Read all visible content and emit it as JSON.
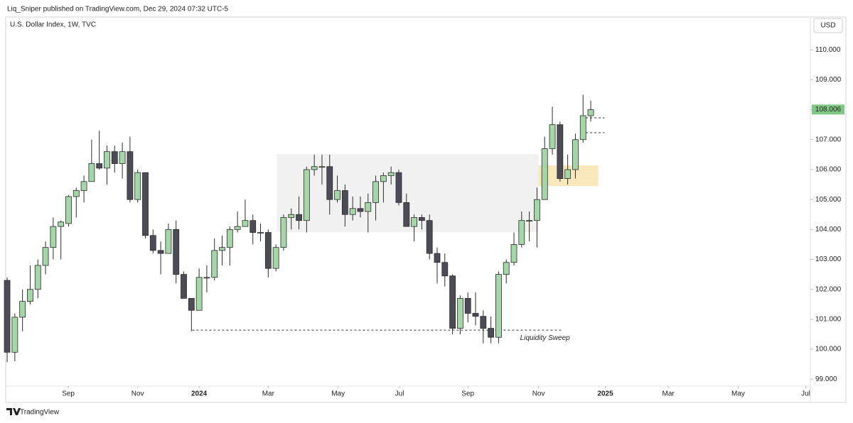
{
  "header": {
    "text": "Liq_Sniper published on TradingView.com, Dec 29, 2024 07:32 UTC-5"
  },
  "footer": {
    "brand": "TradingView"
  },
  "chart_data": {
    "type": "candlestick",
    "title": "U.S. Dollar Index, 1W, TVC",
    "currency": "USD",
    "up_color": "#a5d6a7",
    "down_color": "#4c4c57",
    "outline": "#2b2b2b",
    "grid": false,
    "open": [
      102.3,
      99.9,
      101.07,
      101.6,
      102.0,
      102.8,
      103.4,
      104.1,
      104.2,
      105.1,
      105.3,
      105.6,
      106.2,
      106.05,
      106.6,
      106.2,
      106.6,
      105.0,
      105.9,
      103.8,
      103.3,
      103.2,
      104.0,
      102.5,
      101.7,
      101.3,
      102.4,
      102.4,
      103.3,
      103.4,
      104.0,
      104.1,
      104.3,
      103.9,
      103.9,
      102.7,
      103.4,
      104.4,
      104.5,
      104.3,
      106.0,
      106.1,
      106.1,
      105.0,
      105.3,
      104.5,
      104.7,
      104.6,
      104.9,
      105.6,
      105.8,
      105.9,
      104.9,
      104.1,
      104.4,
      104.3,
      103.2,
      102.9,
      102.45,
      100.7,
      101.7,
      101.2,
      101.1,
      100.7,
      100.4,
      102.5,
      102.9,
      103.5,
      104.3,
      104.3,
      105.0,
      106.7,
      107.5,
      105.7,
      106.0,
      107.0,
      107.8
    ],
    "high": [
      102.4,
      101.2,
      102.0,
      102.8,
      103.0,
      103.6,
      104.4,
      104.3,
      105.15,
      105.4,
      105.8,
      107.0,
      107.3,
      106.8,
      106.8,
      106.9,
      107.1,
      106.0,
      105.9,
      104.0,
      103.6,
      104.2,
      104.3,
      102.6,
      101.7,
      102.7,
      102.8,
      103.7,
      103.8,
      104.1,
      104.6,
      105.0,
      104.5,
      104.2,
      104.0,
      103.5,
      104.5,
      104.7,
      105.1,
      106.1,
      106.5,
      106.5,
      106.5,
      105.8,
      105.5,
      105.1,
      105.1,
      105.2,
      105.8,
      105.9,
      106.1,
      106.0,
      105.2,
      104.5,
      104.5,
      104.5,
      103.4,
      103.2,
      102.5,
      101.8,
      101.9,
      101.9,
      101.3,
      101.1,
      102.6,
      103.0,
      103.9,
      104.6,
      104.6,
      105.4,
      107.1,
      108.1,
      107.6,
      106.5,
      107.2,
      108.5,
      108.3
    ],
    "low": [
      99.57,
      99.6,
      100.6,
      101.5,
      101.7,
      102.5,
      103.0,
      103.0,
      104.1,
      104.4,
      104.9,
      105.6,
      106.0,
      105.5,
      105.9,
      105.7,
      104.9,
      104.9,
      103.7,
      103.2,
      102.5,
      103.2,
      102.2,
      101.7,
      100.6,
      101.3,
      101.9,
      102.3,
      102.8,
      102.8,
      103.9,
      104.1,
      103.5,
      103.6,
      102.4,
      102.6,
      103.3,
      104.0,
      104.0,
      103.9,
      105.8,
      105.5,
      104.5,
      104.9,
      104.1,
      104.3,
      104.4,
      103.9,
      104.3,
      104.9,
      105.5,
      104.8,
      104.1,
      103.6,
      104.0,
      103.0,
      102.2,
      102.1,
      100.5,
      100.5,
      100.9,
      100.8,
      100.2,
      100.2,
      100.2,
      102.2,
      102.8,
      103.4,
      103.6,
      103.4,
      105.0,
      106.5,
      105.6,
      105.5,
      105.7,
      106.9,
      107.6
    ],
    "close": [
      99.9,
      101.07,
      101.6,
      102.0,
      102.8,
      103.4,
      104.1,
      104.25,
      105.1,
      105.3,
      105.6,
      106.2,
      106.05,
      106.6,
      106.2,
      106.6,
      105.0,
      105.9,
      103.8,
      103.3,
      103.2,
      104.0,
      102.5,
      101.7,
      101.3,
      102.4,
      102.4,
      103.3,
      103.4,
      104.0,
      104.1,
      104.3,
      103.9,
      103.9,
      102.7,
      103.4,
      104.4,
      104.5,
      104.3,
      106.0,
      106.1,
      106.1,
      105.0,
      105.3,
      104.5,
      104.7,
      104.6,
      104.9,
      105.6,
      105.8,
      105.9,
      104.9,
      104.1,
      104.4,
      104.3,
      103.2,
      102.9,
      102.45,
      100.7,
      101.7,
      101.2,
      101.1,
      100.7,
      100.4,
      102.5,
      102.9,
      103.5,
      104.3,
      104.3,
      105.0,
      106.7,
      107.5,
      105.7,
      106.0,
      107.0,
      107.8,
      108.0
    ],
    "xlim": [
      -0.19,
      104.6
    ],
    "xticks": [
      {
        "value": 7.96,
        "label": "Sep"
      },
      {
        "value": 17.0,
        "label": "Nov"
      },
      {
        "value": 25.0,
        "label": "2024"
      },
      {
        "value": 34.0,
        "label": "Mar"
      },
      {
        "value": 43.1,
        "label": "May"
      },
      {
        "value": 51.1,
        "label": "Jul"
      },
      {
        "value": 60.0,
        "label": "Sep"
      },
      {
        "value": 69.2,
        "label": "Nov"
      },
      {
        "value": 77.9,
        "label": "2025"
      },
      {
        "value": 86.1,
        "label": "Mar"
      },
      {
        "value": 95.2,
        "label": "May"
      },
      {
        "value": 104.0,
        "label": "Jul"
      }
    ],
    "ylim": [
      98.77,
      111.0
    ],
    "yticks": [
      {
        "value": 99,
        "label": "99.000"
      },
      {
        "value": 100,
        "label": "100.000"
      },
      {
        "value": 101,
        "label": "101.000"
      },
      {
        "value": 102,
        "label": "102.000"
      },
      {
        "value": 103,
        "label": "103.000"
      },
      {
        "value": 104,
        "label": "104.000"
      },
      {
        "value": 105,
        "label": "105.000"
      },
      {
        "value": 106,
        "label": "106.000"
      },
      {
        "value": 107,
        "label": "107.000"
      },
      {
        "value": 108,
        "label": "108.000"
      },
      {
        "value": 109,
        "label": "109.000"
      },
      {
        "value": 110,
        "label": "110.000"
      }
    ],
    "last_price": 108.006,
    "last_price_color": "#81c784",
    "zones": [
      {
        "x": [
          35.1,
          69.2
        ],
        "y": [
          103.91,
          106.52
        ],
        "color": "#f0f0f0"
      },
      {
        "x": [
          69.2,
          77.0
        ],
        "y": [
          105.45,
          106.14
        ],
        "color": "#f9e6b5"
      }
    ],
    "dashed_lines": [
      {
        "x": [
          24.1,
          72.2
        ],
        "y": 100.64
      },
      {
        "x": [
          74.8,
          77.8
        ],
        "y": 107.73
      },
      {
        "x": [
          74.8,
          77.8
        ],
        "y": 107.23
      }
    ],
    "annotation": {
      "text": "Liquidity Sweep",
      "x": 66.8,
      "y": 100.37
    }
  }
}
